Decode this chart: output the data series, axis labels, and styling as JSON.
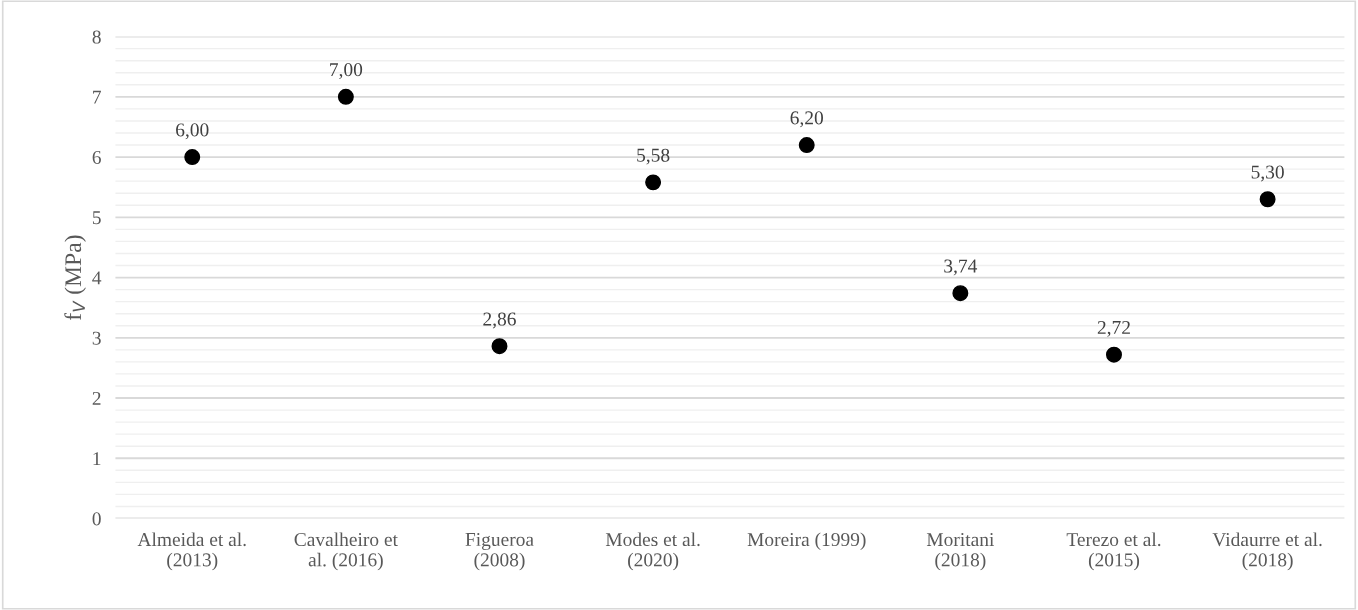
{
  "chart_data": {
    "type": "scatter",
    "ylabel": "f$_{V}$ (MPa)",
    "categories": [
      "Almeida et al.\n(2013)",
      "Cavalheiro et\nal. (2016)",
      "Figueroa\n(2008)",
      "Modes et al.\n(2020)",
      "Moreira (1999)",
      "Moritani\n(2018)",
      "Terezo et al.\n(2015)",
      "Vidaurre et al.\n(2018)"
    ],
    "series": [
      {
        "color": "#000000",
        "values": [
          6.0,
          7.0,
          2.86,
          5.58,
          6.2,
          3.74,
          2.72,
          5.3
        ],
        "value_labels": [
          "6,00",
          "7,00",
          "2,86",
          "5,58",
          "6,20",
          "3,74",
          "2,72",
          "5,30"
        ]
      }
    ],
    "ylim": [
      0,
      8
    ],
    "yticks": [
      0,
      1,
      2,
      3,
      4,
      5,
      6,
      7,
      8
    ],
    "grid": "y",
    "marker": "circle",
    "legend": false
  }
}
